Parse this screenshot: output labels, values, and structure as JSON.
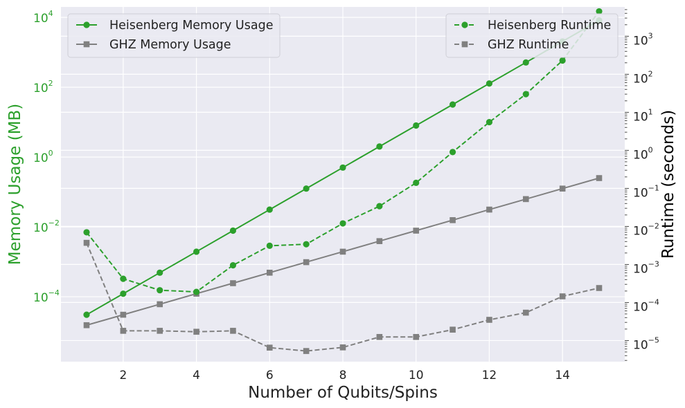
{
  "chart_data": {
    "type": "line",
    "xlabel": "Number of Qubits/Spins",
    "ylabel_left": "Memory Usage (MB)",
    "ylabel_right": "Runtime (seconds)",
    "x": [
      1,
      2,
      3,
      4,
      5,
      6,
      7,
      8,
      9,
      10,
      11,
      12,
      13,
      14,
      15
    ],
    "xlim": [
      0.3,
      15.7
    ],
    "x_ticks": [
      2,
      4,
      6,
      8,
      10,
      12,
      14
    ],
    "y_left": {
      "scale": "log",
      "lim": [
        1.38e-06,
        19950
      ],
      "tick_exponents": [
        -4,
        -2,
        0,
        2,
        4
      ],
      "color": "#2ca02c"
    },
    "y_right": {
      "scale": "log",
      "lim": [
        2.78e-06,
        5890
      ],
      "tick_exponents": [
        -5,
        -4,
        -3,
        -2,
        -1,
        0,
        1,
        2,
        3
      ],
      "color": "#000000"
    },
    "grid": true,
    "series": [
      {
        "name": "Heisenberg Memory Usage",
        "axis": "left",
        "color": "#2ca02c",
        "linestyle": "solid",
        "marker": "circle",
        "values": [
          3.05e-05,
          0.000122,
          0.000488,
          0.00195,
          0.00781,
          0.0313,
          0.125,
          0.5,
          2,
          8,
          32,
          128,
          512,
          2048,
          8192
        ]
      },
      {
        "name": "GHZ Memory Usage",
        "axis": "left",
        "color": "#808080",
        "linestyle": "solid",
        "marker": "square",
        "values": [
          1.53e-05,
          3.05e-05,
          6.1e-05,
          0.000122,
          0.000244,
          0.000488,
          0.000977,
          0.00195,
          0.00391,
          0.00781,
          0.0156,
          0.0313,
          0.0625,
          0.125,
          0.25
        ]
      },
      {
        "name": "Heisenberg Runtime",
        "axis": "right",
        "color": "#2ca02c",
        "linestyle": "dashed",
        "marker": "circle",
        "values": [
          0.007,
          0.00042,
          0.00021,
          0.00019,
          0.00095,
          0.0031,
          0.0034,
          0.012,
          0.034,
          0.14,
          0.9,
          5.5,
          30,
          230,
          4500
        ]
      },
      {
        "name": "GHZ Runtime",
        "axis": "right",
        "color": "#808080",
        "linestyle": "dashed",
        "marker": "square",
        "values": [
          0.0037,
          1.8e-05,
          1.8e-05,
          1.7e-05,
          1.8e-05,
          6.5e-06,
          5.3e-06,
          6.6e-06,
          1.24e-05,
          1.24e-05,
          1.93e-05,
          3.5e-05,
          5.4e-05,
          0.000145,
          0.00024
        ]
      }
    ],
    "legends": [
      {
        "placement": "top-left",
        "series": [
          0,
          1
        ]
      },
      {
        "placement": "top-right",
        "series": [
          2,
          3
        ]
      }
    ]
  }
}
